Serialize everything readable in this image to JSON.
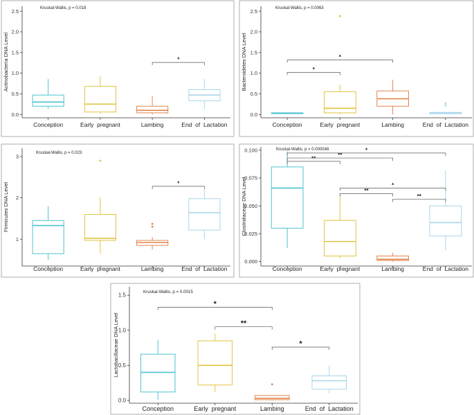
{
  "colors": {
    "conception": "#4ec2d2",
    "early_pregnant": "#e2c43f",
    "lambing": "#e3864e",
    "end_of_lactation": "#a9d6ea",
    "frame": "#999999",
    "axis": "#333333",
    "bracket": "#555555"
  },
  "chart_data": [
    {
      "type": "box",
      "ylabel": "Actinobacteria DNA Level",
      "test_text": "Kruskal-Wallis, p = 0.018",
      "categories": [
        "Conception",
        "Early  pregnant",
        "Lambing",
        "End  of  Lactation"
      ],
      "ylim": [
        -0.08,
        2.62
      ],
      "yticks": [
        0.0,
        0.5,
        1.0,
        1.5,
        2.0,
        2.5
      ],
      "ytick_labels": [
        "0.0",
        "0.5",
        "1.0",
        "1.5",
        "2.0",
        "2.5"
      ],
      "boxes": [
        {
          "lower_whisker": 0.14,
          "q1": 0.2,
          "median": 0.3,
          "q3": 0.47,
          "upper_whisker": 0.86,
          "outliers": []
        },
        {
          "lower_whisker": 0.02,
          "q1": 0.06,
          "median": 0.25,
          "q3": 0.68,
          "upper_whisker": 0.92,
          "outliers": []
        },
        {
          "lower_whisker": 0.0,
          "q1": 0.04,
          "median": 0.1,
          "q3": 0.2,
          "upper_whisker": 0.45,
          "outliers": []
        },
        {
          "lower_whisker": 0.13,
          "q1": 0.33,
          "median": 0.47,
          "q3": 0.6,
          "upper_whisker": 0.86,
          "outliers": []
        }
      ],
      "comparisons": [
        {
          "from": 2,
          "to": 3,
          "y": 1.26,
          "label": "*"
        }
      ]
    },
    {
      "type": "box",
      "ylabel": "Bacteroidetes DNA Level",
      "test_text": "Kruskal-Wallis, p = 0.0063",
      "categories": [
        "Conception",
        "Early  pregnant",
        "Lambing",
        "End  of  Lactation"
      ],
      "ylim": [
        -0.08,
        2.62
      ],
      "yticks": [
        0.0,
        0.5,
        1.0,
        1.5,
        2.0,
        2.5
      ],
      "ytick_labels": [
        "0.0",
        "0.5",
        "1.0",
        "1.5",
        "2.0",
        "2.5"
      ],
      "boxes": [
        {
          "lower_whisker": 0.01,
          "q1": 0.02,
          "median": 0.03,
          "q3": 0.04,
          "upper_whisker": 0.05,
          "outliers": []
        },
        {
          "lower_whisker": 0.0,
          "q1": 0.04,
          "median": 0.15,
          "q3": 0.55,
          "upper_whisker": 0.72,
          "outliers": [
            2.38
          ]
        },
        {
          "lower_whisker": 0.0,
          "q1": 0.2,
          "median": 0.38,
          "q3": 0.57,
          "upper_whisker": 0.84,
          "outliers": []
        },
        {
          "lower_whisker": 0.0,
          "q1": 0.02,
          "median": 0.03,
          "q3": 0.05,
          "upper_whisker": 0.05,
          "outliers": [
            0.22,
            0.27
          ]
        }
      ],
      "comparisons": [
        {
          "from": 0,
          "to": 1,
          "y": 1.02,
          "label": "*"
        },
        {
          "from": 0,
          "to": 2,
          "y": 1.32,
          "label": "*"
        }
      ]
    },
    {
      "type": "box",
      "ylabel": "Firmicutes DNA Level",
      "test_text": "Kruskal-Wallis, p = 0.023",
      "categories": [
        "Conception",
        "Early  pregnant",
        "Lambing",
        "End  of  Lactation"
      ],
      "ylim": [
        0.35,
        3.2
      ],
      "yticks": [
        1,
        2,
        3
      ],
      "ytick_labels": [
        "1",
        "2",
        "3"
      ],
      "boxes": [
        {
          "lower_whisker": 0.5,
          "q1": 0.65,
          "median": 1.33,
          "q3": 1.45,
          "upper_whisker": 1.8,
          "outliers": []
        },
        {
          "lower_whisker": 0.65,
          "q1": 0.97,
          "median": 1.02,
          "q3": 1.6,
          "upper_whisker": 2.02,
          "outliers": [
            2.9
          ]
        },
        {
          "lower_whisker": 0.75,
          "q1": 0.85,
          "median": 0.92,
          "q3": 0.97,
          "upper_whisker": 1.05,
          "outliers": [
            1.3,
            1.37
          ]
        },
        {
          "lower_whisker": 1.0,
          "q1": 1.22,
          "median": 1.64,
          "q3": 1.98,
          "upper_whisker": 2.2,
          "outliers": []
        }
      ],
      "comparisons": [
        {
          "from": 2,
          "to": 3,
          "y": 2.28,
          "label": "*"
        }
      ]
    },
    {
      "type": "box",
      "ylabel": "Clostridiaceae DNA Level",
      "test_text": "Kruskal-Wallis, p = 0.000048",
      "categories": [
        "Conception",
        "Early  pregnant",
        "Lambing",
        "End  of  Lactation"
      ],
      "ylim": [
        -0.004,
        0.103
      ],
      "yticks": [
        0.0,
        0.025,
        0.05,
        0.075,
        0.1
      ],
      "ytick_labels": [
        "0.000",
        "0.025",
        "0.050",
        "0.075",
        "0.100"
      ],
      "boxes": [
        {
          "lower_whisker": 0.012,
          "q1": 0.03,
          "median": 0.066,
          "q3": 0.085,
          "upper_whisker": 0.099,
          "outliers": []
        },
        {
          "lower_whisker": 0.003,
          "q1": 0.005,
          "median": 0.018,
          "q3": 0.037,
          "upper_whisker": 0.06,
          "outliers": []
        },
        {
          "lower_whisker": 0.0,
          "q1": 0.001,
          "median": 0.002,
          "q3": 0.005,
          "upper_whisker": 0.008,
          "outliers": []
        },
        {
          "lower_whisker": 0.01,
          "q1": 0.023,
          "median": 0.035,
          "q3": 0.05,
          "upper_whisker": 0.082,
          "outliers": []
        }
      ],
      "comparisons": [
        {
          "from": 0,
          "to": 1,
          "y": 0.09,
          "label": "**"
        },
        {
          "from": 0,
          "to": 2,
          "y": 0.093,
          "label": "**"
        },
        {
          "from": 0,
          "to": 3,
          "y": 0.0975,
          "label": "*"
        },
        {
          "from": 1,
          "to": 2,
          "y": 0.061,
          "label": "**"
        },
        {
          "from": 1,
          "to": 3,
          "y": 0.066,
          "label": "*"
        },
        {
          "from": 2,
          "to": 3,
          "y": 0.056,
          "label": "**"
        }
      ]
    },
    {
      "type": "box",
      "ylabel": "Lactobacillaceae DNA Level",
      "test_text": "Kruskal-Wallis, p = 0.0015",
      "categories": [
        "Conception",
        "Early  pregnant",
        "Lambing",
        "End  of  Lactation"
      ],
      "ylim": [
        -0.04,
        1.62
      ],
      "yticks": [
        0.0,
        0.5,
        1.0,
        1.5
      ],
      "ytick_labels": [
        "0.0",
        "0.5",
        "1.0",
        "1.5"
      ],
      "boxes": [
        {
          "lower_whisker": 0.01,
          "q1": 0.12,
          "median": 0.4,
          "q3": 0.66,
          "upper_whisker": 0.86,
          "outliers": []
        },
        {
          "lower_whisker": 0.12,
          "q1": 0.22,
          "median": 0.5,
          "q3": 0.85,
          "upper_whisker": 0.95,
          "outliers": []
        },
        {
          "lower_whisker": 0.0,
          "q1": 0.01,
          "median": 0.03,
          "q3": 0.07,
          "upper_whisker": 0.08,
          "outliers": [
            0.23
          ]
        },
        {
          "lower_whisker": 0.1,
          "q1": 0.16,
          "median": 0.28,
          "q3": 0.35,
          "upper_whisker": 0.5,
          "outliers": []
        }
      ],
      "comparisons": [
        {
          "from": 0,
          "to": 2,
          "y": 1.33,
          "label": "*"
        },
        {
          "from": 1,
          "to": 2,
          "y": 1.05,
          "label": "**"
        },
        {
          "from": 2,
          "to": 3,
          "y": 0.76,
          "label": "*"
        }
      ]
    }
  ]
}
